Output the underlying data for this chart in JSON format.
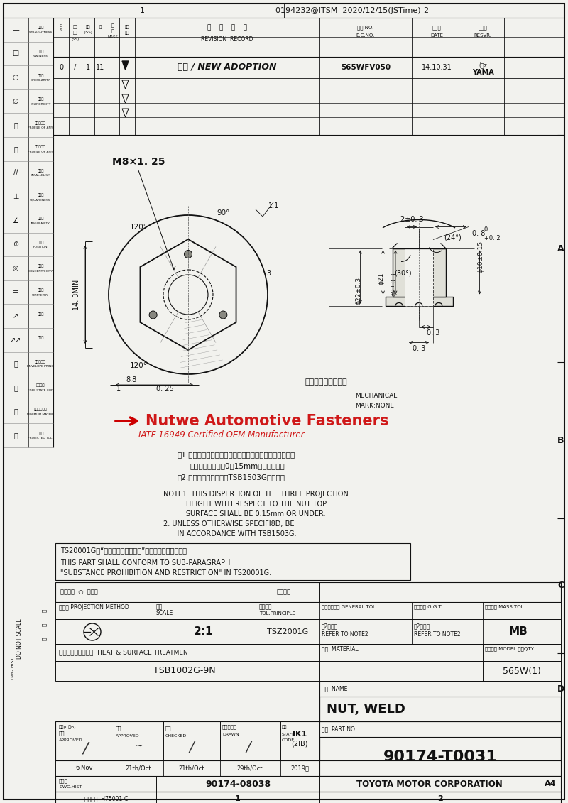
{
  "part_no": "90174-T0031",
  "name": "NUT, WELD",
  "drawing_no": "90174-08038",
  "company": "TOYOTA MOTOR CORPORATION",
  "doc_id": "0194232@ITSM  2020/12/15(JSTime)",
  "scale": "2:1",
  "material": "TSB1002G-9N",
  "model": "565W(1)",
  "tol_principle": "TSZ2001G",
  "revision": "565WFV050",
  "revision_date": "14.10.31",
  "revision_author": "YAMA",
  "rev_desc": "新設 / NEW ADOPTION",
  "thread": "M8×1. 25",
  "bg_color": "#f2f2ee",
  "line_color": "#111111",
  "watermark_color": "#cc0000",
  "notes_jp_1": "注1.　ナットの上面に対するプロジェクション高さ３点の",
  "notes_jp_2": "　　バラツきは，0．15mm以下とする。",
  "notes_jp_3": "　2.　指示なき事項は，TSB1503Gによる。",
  "notes_en_1": "NOTE1. THIS DISPERTION OF THE THREE PROJECTION",
  "notes_en_2": "       HEIGHT WITH RESPECT TO THE NUT TOP",
  "notes_en_3": "       SURFACE SHALL BE 0.15mm OR UNDER.",
  "notes_en_4": "2. UNLESS OTHERWISE SPECIFI8D, BE",
  "notes_en_5": "   IN ACCORDANCE WITH TSB1503G.",
  "substance_jp": "TS20001Gの“使用禁止，制限物質”の条を遵守すること。",
  "substance_en1": "THIS PART SHALL CONFORM TO SUB-PARAGRAPH",
  "substance_en2": "\"SUBSTANCE PROHIBITION AND RESTRICTION\" IN TS20001G.",
  "surface_treatment": "HEAT & SURFACE TREATMENT",
  "strength_jp": "強度識別表示：なし",
  "watermark_text": "Nutwe Automotive Fasteners",
  "watermark_sub": "IATF 16949 Certified OEM Manufacturer",
  "left_syms": [
    [
      "—",
      "真直度",
      "STRAIGHTNESS"
    ],
    [
      "□",
      "平面度",
      "FLATNESS"
    ],
    [
      "○",
      "真円度",
      "CIRCULARITY"
    ],
    [
      "∅",
      "円筒度",
      "CYLINDRICITY"
    ],
    [
      "⌢",
      "線の輪郭度",
      "PROFILE OF ANY LINE"
    ],
    [
      "⌣",
      "面の輪郭度",
      "PROFILE OF ANY SURFACE"
    ],
    [
      "//",
      "平行度",
      "PARALLELISM"
    ],
    [
      "⊥",
      "直角度",
      "SQUARENESS"
    ],
    [
      "∠",
      "傍斜度",
      "ANGULARITY"
    ],
    [
      "⊕",
      "位置度",
      "POSITION"
    ],
    [
      "◎",
      "同軸度",
      "CONCENTRICITY"
    ],
    [
      "=",
      "対称度",
      "SYMMETRY"
    ],
    [
      "↗",
      "円跳れ",
      ""
    ],
    [
      "↗↗",
      "全跳れ",
      ""
    ],
    [
      "Ⓔ",
      "その他包絡",
      "ENVELOPE PRINCIPLE"
    ],
    [
      "Ⓕ",
      "最大実捉",
      "FREE STATE CONDITION"
    ],
    [
      "Ⓛ",
      "最小実量材料",
      "MINIMUM MATERIAL CONDITION"
    ],
    [
      "Ⓜ",
      "投影法",
      "PROJECTED TOL ZONE"
    ]
  ]
}
